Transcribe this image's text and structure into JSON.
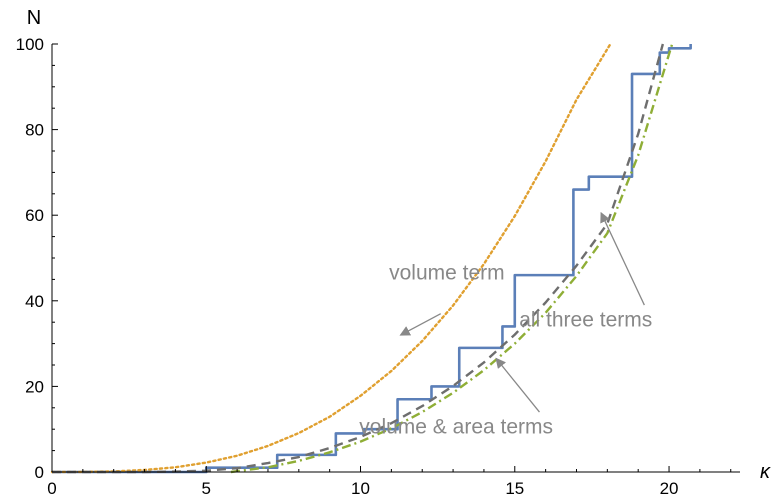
{
  "chart_data": {
    "type": "line",
    "title": "",
    "xlabel": "κ",
    "ylabel": "N",
    "xlim": [
      0,
      22.3
    ],
    "ylim": [
      0,
      100
    ],
    "x_ticks": [
      "0",
      "5",
      "10",
      "15",
      "20"
    ],
    "y_ticks": [
      "0",
      "20",
      "40",
      "60",
      "80",
      "100"
    ],
    "grid": false,
    "series": [
      {
        "name": "",
        "style": "step",
        "color": "#5b7fb8",
        "x": [
          0,
          5.0,
          7.3,
          9.2,
          10.1,
          11.2,
          12.3,
          13.2,
          14.6,
          15.0,
          16.9,
          17.4,
          18.8,
          19.7,
          20.0,
          20.7
        ],
        "y": [
          0,
          1,
          4,
          9,
          10,
          17,
          20,
          29,
          34,
          46,
          66,
          69,
          93,
          98,
          99,
          100
        ]
      },
      {
        "name": "",
        "style": "dotted",
        "color": "#e0a030",
        "x": [
          0,
          1,
          2,
          3,
          4,
          5,
          6,
          7,
          8,
          9,
          10,
          11,
          12,
          13,
          14,
          15,
          16,
          17,
          18.1
        ],
        "y": [
          0,
          0.02,
          0.14,
          0.48,
          1.1,
          2.2,
          3.8,
          6.1,
          9.1,
          12.9,
          17.8,
          23.6,
          30.6,
          38.9,
          48.6,
          59.8,
          72.6,
          87.0,
          100
        ]
      },
      {
        "name": "",
        "style": "dashed",
        "color": "#6e6e6e",
        "x": [
          0,
          1,
          2,
          3,
          4,
          5,
          6,
          7,
          8,
          9,
          10,
          11,
          12,
          13,
          14,
          15,
          16,
          17,
          18,
          19,
          19.8
        ],
        "y": [
          0,
          0,
          0,
          0,
          0.1,
          0.3,
          0.9,
          2.1,
          3.5,
          5.6,
          8.2,
          11.4,
          15.4,
          20.1,
          25.6,
          32.1,
          39.6,
          48.2,
          58.0,
          79.0,
          100
        ]
      },
      {
        "name": "",
        "style": "dashdot",
        "color": "#8fae36",
        "x": [
          5.8,
          7,
          8,
          9,
          10,
          11,
          12,
          13,
          14,
          15,
          16,
          17,
          18,
          19,
          20.1
        ],
        "y": [
          0,
          1.1,
          2.6,
          4.6,
          7.1,
          10.2,
          14.0,
          18.5,
          23.8,
          30.0,
          37.2,
          45.8,
          55.8,
          74.0,
          100
        ]
      }
    ],
    "annotations": [
      {
        "text": "volume term",
        "x": 12.8,
        "y": 45,
        "arrow_from": [
          12.6,
          37
        ],
        "arrow_to": [
          11.3,
          32
        ]
      },
      {
        "text": "all three terms",
        "x": 17.3,
        "y": 34,
        "arrow_from": [
          19.2,
          39
        ],
        "arrow_to": [
          17.8,
          60.5
        ]
      },
      {
        "text": "volume & area terms",
        "x": 13.1,
        "y": 9,
        "arrow_from": [
          15.8,
          14
        ],
        "arrow_to": [
          14.4,
          26.5
        ]
      }
    ],
    "annotation_color": "#888888"
  }
}
